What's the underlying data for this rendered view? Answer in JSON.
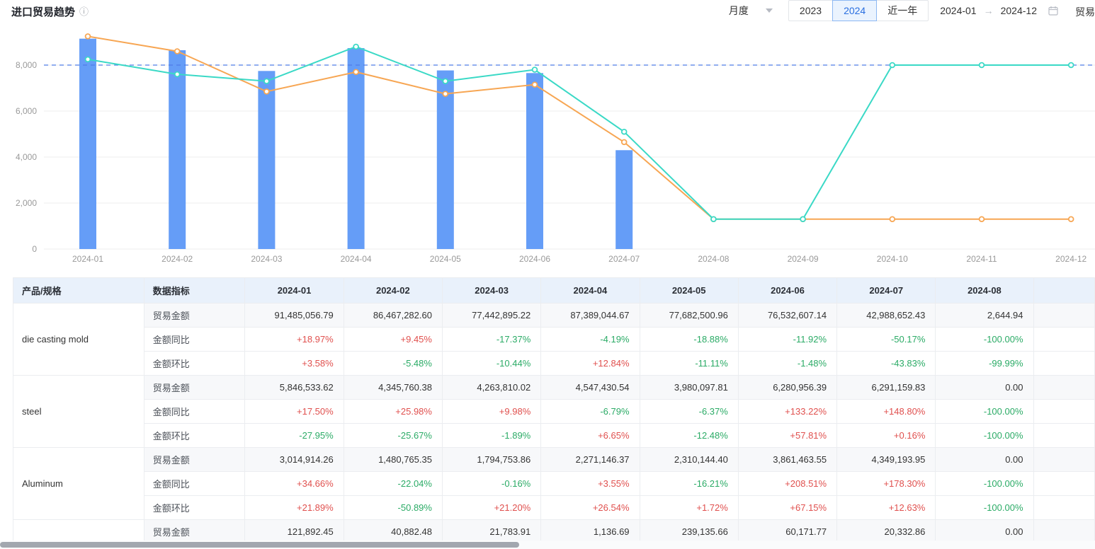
{
  "header": {
    "title": "进口贸易趋势",
    "period_select": "月度",
    "year_buttons": [
      {
        "label": "2023",
        "active": false
      },
      {
        "label": "2024",
        "active": true
      },
      {
        "label": "近一年",
        "active": false
      }
    ],
    "date_range": {
      "start": "2024-01",
      "arrow": "→",
      "end": "2024-12"
    },
    "trailing_label": "贸易"
  },
  "chart_data": {
    "type": "bar",
    "categories": [
      "2024-01",
      "2024-02",
      "2024-03",
      "2024-04",
      "2024-05",
      "2024-06",
      "2024-07",
      "2024-08",
      "2024-09",
      "2024-10",
      "2024-11",
      "2024-12"
    ],
    "series": [
      {
        "name": "trade-amount-bars",
        "type": "bar",
        "color": "#659df7",
        "values": [
          9149,
          8647,
          7744,
          8739,
          7768,
          7653,
          4299,
          null,
          null,
          null,
          null,
          null
        ]
      },
      {
        "name": "line-orange",
        "type": "line",
        "color": "#f7a653",
        "values": [
          9250,
          8600,
          6850,
          7700,
          6750,
          7150,
          4650,
          1300,
          1300,
          1300,
          1300,
          1300
        ]
      },
      {
        "name": "line-teal",
        "type": "line",
        "color": "#3ad9c6",
        "values": [
          8250,
          7600,
          7300,
          8800,
          7300,
          7800,
          5100,
          1300,
          1300,
          8000,
          8000,
          8000
        ]
      }
    ],
    "yticks": [
      0,
      2000,
      4000,
      6000,
      8000
    ],
    "ylim": [
      0,
      9900
    ],
    "refline": 8000,
    "grid": true,
    "legend": "none"
  },
  "table": {
    "col_product": "产品/规格",
    "col_indicator": "数据指标",
    "months": [
      "2024-01",
      "2024-02",
      "2024-03",
      "2024-04",
      "2024-05",
      "2024-06",
      "2024-07",
      "2024-08"
    ],
    "products": [
      {
        "name": "die casting mold",
        "rows": [
          {
            "label": "贸易金额",
            "type": "amount",
            "values": [
              "91,485,056.79",
              "86,467,282.60",
              "77,442,895.22",
              "87,389,044.67",
              "77,682,500.96",
              "76,532,607.14",
              "42,988,652.43",
              "2,644.94"
            ]
          },
          {
            "label": "金额同比",
            "type": "pct",
            "values": [
              "+18.97%",
              "+9.45%",
              "-17.37%",
              "-4.19%",
              "-18.88%",
              "-11.92%",
              "-50.17%",
              "-100.00%"
            ]
          },
          {
            "label": "金额环比",
            "type": "pct",
            "values": [
              "+3.58%",
              "-5.48%",
              "-10.44%",
              "+12.84%",
              "-11.11%",
              "-1.48%",
              "-43.83%",
              "-99.99%"
            ]
          }
        ]
      },
      {
        "name": "steel",
        "rows": [
          {
            "label": "贸易金额",
            "type": "amount",
            "values": [
              "5,846,533.62",
              "4,345,760.38",
              "4,263,810.02",
              "4,547,430.54",
              "3,980,097.81",
              "6,280,956.39",
              "6,291,159.83",
              "0.00"
            ]
          },
          {
            "label": "金额同比",
            "type": "pct",
            "values": [
              "+17.50%",
              "+25.98%",
              "+9.98%",
              "-6.79%",
              "-6.37%",
              "+133.22%",
              "+148.80%",
              "-100.00%"
            ]
          },
          {
            "label": "金额环比",
            "type": "pct",
            "values": [
              "-27.95%",
              "-25.67%",
              "-1.89%",
              "+6.65%",
              "-12.48%",
              "+57.81%",
              "+0.16%",
              "-100.00%"
            ]
          }
        ]
      },
      {
        "name": "Aluminum",
        "rows": [
          {
            "label": "贸易金额",
            "type": "amount",
            "values": [
              "3,014,914.26",
              "1,480,765.35",
              "1,794,753.86",
              "2,271,146.37",
              "2,310,144.40",
              "3,861,463.55",
              "4,349,193.95",
              "0.00"
            ]
          },
          {
            "label": "金额同比",
            "type": "pct",
            "values": [
              "+34.66%",
              "-22.04%",
              "-0.16%",
              "+3.55%",
              "-16.21%",
              "+208.51%",
              "+178.30%",
              "-100.00%"
            ]
          },
          {
            "label": "金额环比",
            "type": "pct",
            "values": [
              "+21.89%",
              "-50.89%",
              "+21.20%",
              "+26.54%",
              "+1.72%",
              "+67.15%",
              "+12.63%",
              "-100.00%"
            ]
          }
        ]
      },
      {
        "name": "",
        "rows": [
          {
            "label": "贸易金额",
            "type": "amount",
            "values": [
              "121,892.45",
              "40,882.48",
              "21,783.91",
              "1,136.69",
              "239,135.66",
              "60,171.77",
              "20,332.86",
              "0.00"
            ]
          }
        ]
      }
    ]
  },
  "colors": {
    "bar": "#659df7",
    "line_orange": "#f7a653",
    "line_teal": "#3ad9c6",
    "refline": "#4f7de8",
    "positive": "#e0504e",
    "negative": "#2bab66",
    "header_bg": "#e9f1fb",
    "row_alt_bg": "#f7f8fa",
    "border": "#ebedf0",
    "axis_text": "#999999",
    "gridline": "#ececec"
  }
}
